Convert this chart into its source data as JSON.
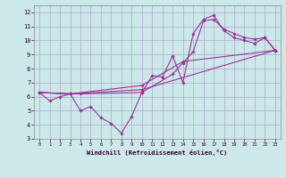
{
  "xlabel": "Windchill (Refroidissement éolien,°C)",
  "bg_color": "#cce8e8",
  "grid_color": "#aaaacc",
  "line_color": "#993399",
  "xlim": [
    -0.5,
    23.5
  ],
  "ylim": [
    3,
    12.5
  ],
  "xticks": [
    0,
    1,
    2,
    3,
    4,
    5,
    6,
    7,
    8,
    9,
    10,
    11,
    12,
    13,
    14,
    15,
    16,
    17,
    18,
    19,
    20,
    21,
    22,
    23
  ],
  "yticks": [
    3,
    4,
    5,
    6,
    7,
    8,
    9,
    10,
    11,
    12
  ],
  "series1_x": [
    0,
    1,
    2,
    3,
    4,
    5,
    6,
    7,
    8,
    9,
    10,
    11,
    12,
    13,
    14,
    15,
    16,
    17,
    18,
    19,
    20,
    21,
    22,
    23
  ],
  "series1_y": [
    6.3,
    5.7,
    6.0,
    6.2,
    5.0,
    5.3,
    4.5,
    4.1,
    3.4,
    4.6,
    6.3,
    7.5,
    7.4,
    8.9,
    7.0,
    10.5,
    11.5,
    11.8,
    10.7,
    10.2,
    10.0,
    9.8,
    10.2,
    9.3
  ],
  "series2_x": [
    0,
    3,
    4,
    10,
    13,
    14,
    15,
    16,
    17,
    18,
    19,
    20,
    21,
    22,
    23
  ],
  "series2_y": [
    6.3,
    6.2,
    6.2,
    6.3,
    7.6,
    8.4,
    9.2,
    11.4,
    11.5,
    10.8,
    10.5,
    10.2,
    10.1,
    10.2,
    9.3
  ],
  "series3_x": [
    0,
    3,
    10,
    23
  ],
  "series3_y": [
    6.3,
    6.2,
    6.5,
    9.3
  ],
  "series4_x": [
    0,
    3,
    10,
    14,
    23
  ],
  "series4_y": [
    6.3,
    6.2,
    6.8,
    8.5,
    9.3
  ]
}
